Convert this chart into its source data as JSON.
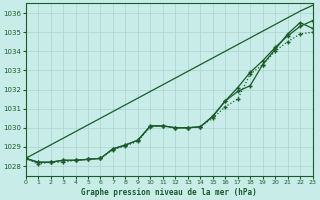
{
  "title": "Graphe pression niveau de la mer (hPa)",
  "bg_color": "#c8ece8",
  "grid_color": "#aad4cc",
  "line_color": "#1a5c2a",
  "x_values": [
    0,
    1,
    2,
    3,
    4,
    5,
    6,
    7,
    8,
    9,
    10,
    11,
    12,
    13,
    14,
    15,
    16,
    17,
    18,
    19,
    20,
    21,
    22,
    23
  ],
  "line1_straight": [
    1028.4,
    1028.75,
    1029.1,
    1029.45,
    1029.8,
    1030.15,
    1030.5,
    1030.85,
    1031.2,
    1031.55,
    1031.9,
    1032.25,
    1032.6,
    1032.95,
    1033.3,
    1033.65,
    1034.0,
    1034.35,
    1034.7,
    1035.05,
    1035.4,
    1035.75,
    1036.1,
    1036.4
  ],
  "line2": [
    1028.4,
    1028.2,
    1028.2,
    1028.3,
    1028.3,
    1028.35,
    1028.4,
    1028.9,
    1029.1,
    1029.35,
    1030.1,
    1030.1,
    1030.0,
    1030.0,
    1030.05,
    1030.6,
    1031.4,
    1032.1,
    1032.9,
    1033.5,
    1034.2,
    1034.8,
    1035.3,
    1035.6
  ],
  "line3": [
    1028.4,
    1028.2,
    1028.2,
    1028.3,
    1028.3,
    1028.35,
    1028.4,
    1028.9,
    1029.1,
    1029.35,
    1030.1,
    1030.1,
    1030.0,
    1030.0,
    1030.05,
    1030.6,
    1031.4,
    1031.9,
    1032.2,
    1033.3,
    1034.1,
    1034.9,
    1035.5,
    1035.2
  ],
  "line4_dotted": [
    1028.4,
    1028.1,
    1028.2,
    1028.2,
    1028.3,
    1028.35,
    1028.4,
    1028.85,
    1029.05,
    1029.3,
    1030.05,
    1030.1,
    1030.0,
    1030.0,
    1030.05,
    1030.5,
    1031.1,
    1031.5,
    1032.8,
    1033.3,
    1034.0,
    1034.5,
    1034.9,
    1035.0
  ],
  "ylim": [
    1027.5,
    1036.5
  ],
  "xlim": [
    0,
    23
  ],
  "yticks": [
    1028,
    1029,
    1030,
    1031,
    1032,
    1033,
    1034,
    1035,
    1036
  ],
  "xticks": [
    0,
    1,
    2,
    3,
    4,
    5,
    6,
    7,
    8,
    9,
    10,
    11,
    12,
    13,
    14,
    15,
    16,
    17,
    18,
    19,
    20,
    21,
    22,
    23
  ],
  "xtick_labels": [
    "0",
    "1",
    "2",
    "3",
    "4",
    "5",
    "6",
    "7",
    "8",
    "9",
    "10",
    "11",
    "12",
    "13",
    "14",
    "15",
    "16",
    "17",
    "18",
    "19",
    "20",
    "21",
    "22",
    "23"
  ]
}
